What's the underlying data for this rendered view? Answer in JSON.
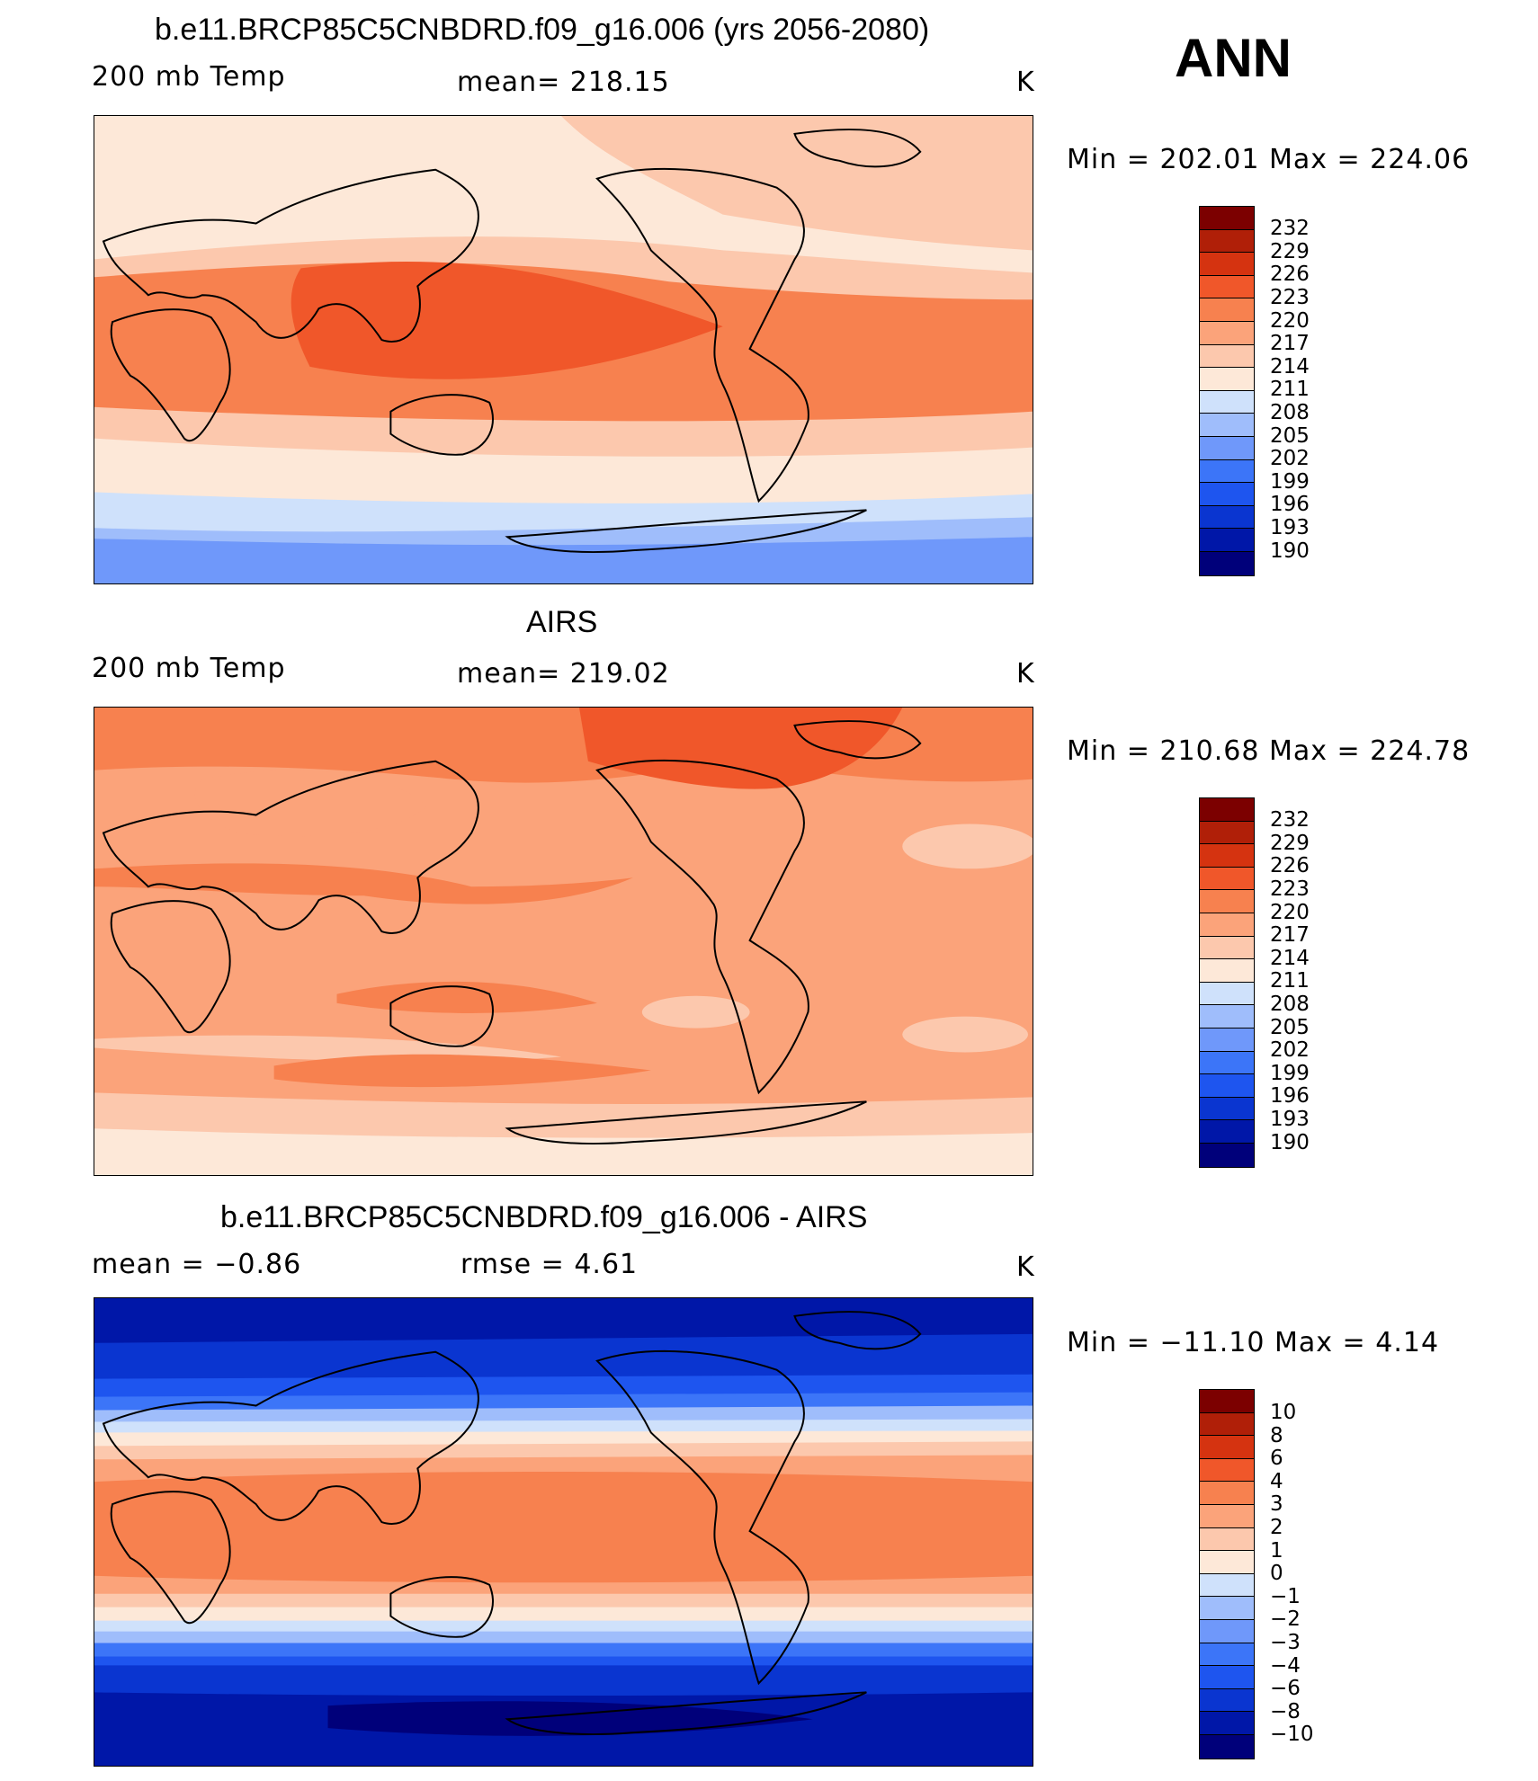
{
  "season": "ANN",
  "colors": {
    "abs": [
      "#00007a",
      "#0017a8",
      "#0a35d0",
      "#1e55ef",
      "#3c75f8",
      "#6f98fa",
      "#9fbdfb",
      "#cfe1fb",
      "#fde8d8",
      "#fcc8ad",
      "#fba37a",
      "#f7814f",
      "#f0572a",
      "#d53310",
      "#b01f08",
      "#7c0000"
    ],
    "diff": [
      "#00007a",
      "#0017a8",
      "#0a35d0",
      "#1e55ef",
      "#3c75f8",
      "#6f98fa",
      "#9fbdfb",
      "#cfe1fb",
      "#fde8d8",
      "#fcc8ad",
      "#fba37a",
      "#f7814f",
      "#f0572a",
      "#d53310",
      "#b01f08",
      "#7c0000"
    ]
  },
  "panels": [
    {
      "id": "model",
      "title": "b.e11.BRCP85C5CNBDRD.f09_g16.006 (yrs 2056-2080)",
      "left_label": "200 mb Temp",
      "center_label": "mean=  218.15",
      "units": "K",
      "minmax": "Min  =  202.01  Max  =  224.06",
      "colorbar_labels": [
        "232",
        "229",
        "226",
        "223",
        "220",
        "217",
        "214",
        "211",
        "208",
        "205",
        "202",
        "199",
        "196",
        "193",
        "190"
      ]
    },
    {
      "id": "obs",
      "title": "AIRS",
      "left_label": "200 mb Temp",
      "center_label": "mean=  219.02",
      "units": "K",
      "minmax": "Min  =  210.68  Max  =  224.78",
      "colorbar_labels": [
        "232",
        "229",
        "226",
        "223",
        "220",
        "217",
        "214",
        "211",
        "208",
        "205",
        "202",
        "199",
        "196",
        "193",
        "190"
      ]
    },
    {
      "id": "diff",
      "title": "b.e11.BRCP85C5CNBDRD.f09_g16.006 - AIRS",
      "left_label": "mean  =    −0.86",
      "center_label": "rmse  =     4.61",
      "units": "K",
      "minmax": "Min  =  −11.10  Max  =     4.14",
      "colorbar_labels": [
        "10",
        "8",
        "6",
        "4",
        "3",
        "2",
        "1",
        "0",
        "−1",
        "−2",
        "−3",
        "−4",
        "−6",
        "−8",
        "−10"
      ]
    }
  ]
}
